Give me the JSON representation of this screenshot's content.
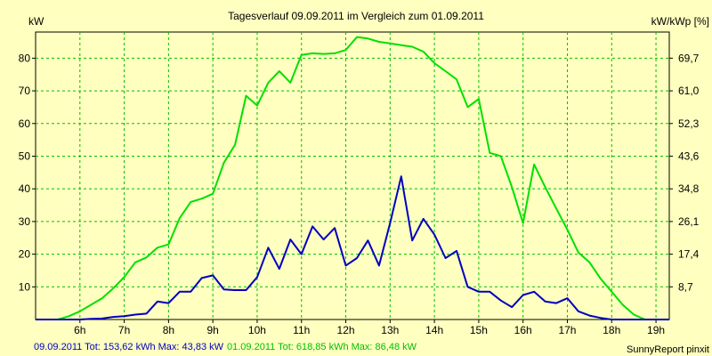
{
  "chart_data": {
    "type": "line",
    "title": "Tagesverlauf 09.09.2011 im Vergleich zum 01.09.2011",
    "ylabel_left": "kW",
    "ylabel_right": "kW/kWp [%]",
    "xlim": [
      5,
      19.3
    ],
    "ylim": [
      0,
      88
    ],
    "yticks_left": [
      10,
      20,
      30,
      40,
      50,
      60,
      70,
      80
    ],
    "yticks_right": [
      "8,7",
      "17,4",
      "26,1",
      "34,8",
      "43,6",
      "52,3",
      "61,0",
      "69,7"
    ],
    "xticks": [
      6,
      7,
      8,
      9,
      10,
      11,
      12,
      13,
      14,
      15,
      16,
      17,
      18,
      19
    ],
    "xtick_labels": [
      "6h",
      "7h",
      "8h",
      "9h",
      "10h",
      "11h",
      "12h",
      "13h",
      "14h",
      "15h",
      "16h",
      "17h",
      "18h",
      "19h"
    ],
    "grid": true,
    "colors": {
      "background": "#ffffc0",
      "grid": "#00c000",
      "series_1": "#0000c0",
      "series_2": "#00e000"
    },
    "series": [
      {
        "key": "s09",
        "color": "#0000c0",
        "x": [
          5.0,
          5.5,
          5.75,
          6.0,
          6.25,
          6.5,
          6.75,
          7.0,
          7.25,
          7.5,
          7.75,
          8.0,
          8.25,
          8.5,
          8.75,
          9.0,
          9.25,
          9.5,
          9.75,
          10.0,
          10.25,
          10.5,
          10.75,
          11.0,
          11.25,
          11.5,
          11.75,
          12.0,
          12.25,
          12.5,
          12.75,
          13.0,
          13.25,
          13.5,
          13.75,
          14.0,
          14.25,
          14.5,
          14.75,
          15.0,
          15.25,
          15.5,
          15.75,
          16.0,
          16.25,
          16.5,
          16.75,
          17.0,
          17.25,
          17.5,
          17.75,
          18.0,
          18.5,
          19.0,
          19.3
        ],
        "y": [
          0,
          0,
          0,
          0,
          0.2,
          0.3,
          0.8,
          1,
          1.5,
          1.8,
          5.5,
          5,
          8.5,
          8.5,
          12.7,
          13.5,
          9.2,
          9,
          9,
          13,
          22,
          15.5,
          24.5,
          20,
          28.5,
          24.5,
          28,
          16.5,
          18.8,
          24.2,
          16.5,
          29.5,
          43.8,
          24.2,
          30.8,
          26,
          18.8,
          21,
          10,
          8.5,
          8.5,
          5.8,
          3.8,
          7.5,
          8.5,
          5.5,
          5,
          6.5,
          2.5,
          1.2,
          0.5,
          0,
          0,
          0,
          0
        ]
      },
      {
        "key": "s01",
        "color": "#00e000",
        "x": [
          5.0,
          5.5,
          5.75,
          6.0,
          6.25,
          6.5,
          6.75,
          7.0,
          7.25,
          7.5,
          7.75,
          8.0,
          8.25,
          8.5,
          8.75,
          9.0,
          9.25,
          9.5,
          9.75,
          10.0,
          10.25,
          10.5,
          10.75,
          11.0,
          11.25,
          11.5,
          11.75,
          12.0,
          12.25,
          12.5,
          12.75,
          13.0,
          13.25,
          13.5,
          13.75,
          14.0,
          14.25,
          14.5,
          14.75,
          15.0,
          15.25,
          15.5,
          15.75,
          16.0,
          16.25,
          16.5,
          16.75,
          17.0,
          17.25,
          17.5,
          17.75,
          18.0,
          18.25,
          18.5,
          18.75,
          19.0,
          19.3
        ],
        "y": [
          0,
          0,
          1,
          2.5,
          4.5,
          6.5,
          9.5,
          13,
          17.5,
          19,
          22,
          23,
          31,
          36,
          37,
          38.5,
          48,
          53.5,
          68.5,
          65.5,
          72.5,
          76,
          72.5,
          81,
          81.5,
          81.3,
          81.5,
          82.5,
          86.48,
          86,
          85,
          84.5,
          84,
          83.5,
          82,
          78.5,
          76,
          73.5,
          65,
          67.5,
          51,
          50,
          40.5,
          29.5,
          47.5,
          40.5,
          34,
          27.5,
          20.5,
          17.5,
          12.5,
          8.5,
          4.5,
          1.5,
          0,
          0,
          0
        ]
      }
    ]
  },
  "legend": {
    "s1_label": "09.09.2011 Tot: 153,62 kWh Max: 43,83 kW",
    "s2_label": "01.09.2011 Tot: 618,85 kWh Max: 86,48 kW"
  },
  "footer": {
    "credit": "SunnyReport pinxit"
  }
}
